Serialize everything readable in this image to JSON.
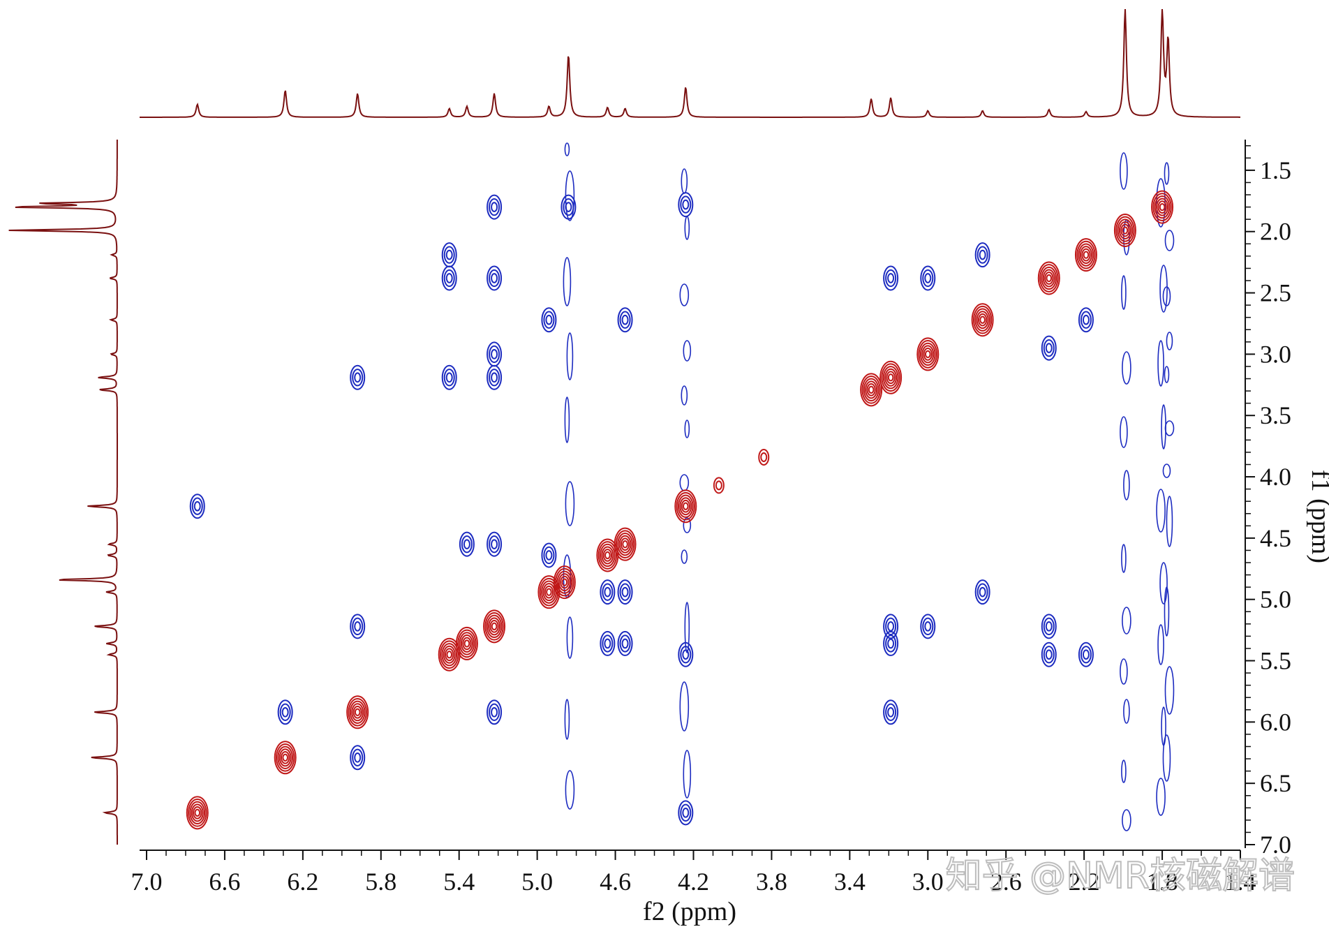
{
  "chart_data": {
    "type": "scatter",
    "subtype": "2D COSY NMR contour plot",
    "xlabel": "f2 (ppm)",
    "ylabel": "f1 (ppm)",
    "xlim": [
      7.0,
      1.4
    ],
    "ylim": [
      1.25,
      7.0
    ],
    "x_ticks": [
      7.0,
      6.6,
      6.2,
      5.8,
      5.4,
      5.0,
      4.6,
      4.2,
      3.8,
      3.4,
      3.0,
      2.6,
      2.2,
      1.8,
      1.4
    ],
    "x_tick_labels": [
      "7.0",
      "6.6",
      "6.2",
      "5.8",
      "5.4",
      "5.0",
      "4.6",
      "4.2",
      "3.8",
      "3.4",
      "3.0",
      "2.6",
      "2.2",
      "1.8",
      "1.4"
    ],
    "y_ticks": [
      1.5,
      2.0,
      2.5,
      3.0,
      3.5,
      4.0,
      4.5,
      5.0,
      5.5,
      6.0,
      6.5,
      7.0
    ],
    "y_tick_labels": [
      "1.5",
      "2.0",
      "2.5",
      "3.0",
      "3.5",
      "4.0",
      "4.5",
      "5.0",
      "5.5",
      "6.0",
      "6.5",
      "7.0"
    ],
    "grid": false,
    "colors": {
      "positive": "#c01818",
      "negative": "#1c2bc0",
      "projection": "#7a1010",
      "axis": "#111111"
    },
    "projection_peaks": [
      {
        "ppm": 6.74,
        "h": 0.12
      },
      {
        "ppm": 6.29,
        "h": 0.25
      },
      {
        "ppm": 5.92,
        "h": 0.22
      },
      {
        "ppm": 5.45,
        "h": 0.08
      },
      {
        "ppm": 5.36,
        "h": 0.1
      },
      {
        "ppm": 5.22,
        "h": 0.22
      },
      {
        "ppm": 4.94,
        "h": 0.1
      },
      {
        "ppm": 4.84,
        "h": 0.58
      },
      {
        "ppm": 4.64,
        "h": 0.09
      },
      {
        "ppm": 4.55,
        "h": 0.08
      },
      {
        "ppm": 4.24,
        "h": 0.28
      },
      {
        "ppm": 3.29,
        "h": 0.17
      },
      {
        "ppm": 3.19,
        "h": 0.18
      },
      {
        "ppm": 3.0,
        "h": 0.06
      },
      {
        "ppm": 2.72,
        "h": 0.06
      },
      {
        "ppm": 2.38,
        "h": 0.07
      },
      {
        "ppm": 2.19,
        "h": 0.05
      },
      {
        "ppm": 1.99,
        "h": 1.0
      },
      {
        "ppm": 1.8,
        "h": 0.97
      },
      {
        "ppm": 1.77,
        "h": 0.7
      }
    ],
    "diagonal_peaks": [
      {
        "f2": 6.74,
        "f1": 6.74
      },
      {
        "f2": 6.29,
        "f1": 6.29
      },
      {
        "f2": 5.92,
        "f1": 5.92
      },
      {
        "f2": 5.45,
        "f1": 5.45
      },
      {
        "f2": 5.36,
        "f1": 5.36
      },
      {
        "f2": 5.22,
        "f1": 5.22
      },
      {
        "f2": 4.94,
        "f1": 4.94
      },
      {
        "f2": 4.86,
        "f1": 4.86
      },
      {
        "f2": 4.64,
        "f1": 4.64
      },
      {
        "f2": 4.55,
        "f1": 4.55
      },
      {
        "f2": 4.24,
        "f1": 4.24
      },
      {
        "f2": 4.07,
        "f1": 4.07
      },
      {
        "f2": 3.84,
        "f1": 3.84
      },
      {
        "f2": 3.29,
        "f1": 3.29
      },
      {
        "f2": 3.19,
        "f1": 3.19
      },
      {
        "f2": 3.0,
        "f1": 3.0
      },
      {
        "f2": 2.72,
        "f1": 2.72
      },
      {
        "f2": 2.38,
        "f1": 2.38
      },
      {
        "f2": 2.19,
        "f1": 2.19
      },
      {
        "f2": 1.99,
        "f1": 1.99
      },
      {
        "f2": 1.8,
        "f1": 1.8
      }
    ],
    "cross_peaks": [
      {
        "f2": 5.22,
        "f1": 1.8
      },
      {
        "f2": 4.84,
        "f1": 1.8
      },
      {
        "f2": 4.24,
        "f1": 1.78
      },
      {
        "f2": 5.45,
        "f1": 2.19
      },
      {
        "f2": 5.45,
        "f1": 2.38
      },
      {
        "f2": 5.22,
        "f1": 2.38
      },
      {
        "f2": 4.94,
        "f1": 2.72
      },
      {
        "f2": 4.55,
        "f1": 2.72
      },
      {
        "f2": 5.22,
        "f1": 3.0
      },
      {
        "f2": 5.22,
        "f1": 3.19
      },
      {
        "f2": 5.45,
        "f1": 3.19
      },
      {
        "f2": 5.92,
        "f1": 3.19
      },
      {
        "f2": 6.74,
        "f1": 4.24
      },
      {
        "f2": 5.36,
        "f1": 4.55
      },
      {
        "f2": 5.22,
        "f1": 4.55
      },
      {
        "f2": 4.94,
        "f1": 4.64
      },
      {
        "f2": 4.64,
        "f1": 4.94
      },
      {
        "f2": 4.55,
        "f1": 4.94
      },
      {
        "f2": 5.92,
        "f1": 5.22
      },
      {
        "f2": 4.64,
        "f1": 5.36
      },
      {
        "f2": 4.55,
        "f1": 5.36
      },
      {
        "f2": 5.22,
        "f1": 5.92
      },
      {
        "f2": 6.29,
        "f1": 5.92
      },
      {
        "f2": 5.92,
        "f1": 6.29
      },
      {
        "f2": 4.24,
        "f1": 6.74
      },
      {
        "f2": 3.19,
        "f1": 2.38
      },
      {
        "f2": 3.0,
        "f1": 2.38
      },
      {
        "f2": 2.72,
        "f1": 2.19
      },
      {
        "f2": 2.19,
        "f1": 2.72
      },
      {
        "f2": 2.38,
        "f1": 2.95
      },
      {
        "f2": 3.19,
        "f1": 5.22
      },
      {
        "f2": 3.19,
        "f1": 5.36
      },
      {
        "f2": 3.19,
        "f1": 5.92
      },
      {
        "f2": 3.0,
        "f1": 5.22
      },
      {
        "f2": 2.38,
        "f1": 5.22
      },
      {
        "f2": 2.38,
        "f1": 5.45
      },
      {
        "f2": 2.19,
        "f1": 5.45
      },
      {
        "f2": 2.72,
        "f1": 4.94
      },
      {
        "f2": 4.24,
        "f1": 5.45
      }
    ],
    "streak_columns": [
      4.84,
      4.24,
      1.99,
      1.8,
      1.77
    ],
    "watermark": "知乎 @NMR核磁解谱"
  }
}
